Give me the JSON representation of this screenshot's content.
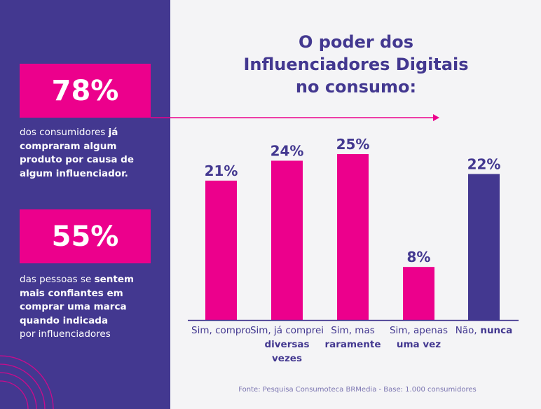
{
  "stats": [
    {
      "value": "78%",
      "text_plain": "dos consumidores ",
      "text_bold": "já compraram algum produto por causa de algum influenciador.",
      "text_after": ""
    },
    {
      "value": "55%",
      "text_plain": "das pessoas se ",
      "text_bold": "sentem mais confiantes em comprar uma marca quando indicada",
      "text_after": "por influenciadores"
    }
  ],
  "colors": {
    "purple": "#433890",
    "pink": "#ec008c",
    "background": "#f4f4f6"
  },
  "chart_data": {
    "type": "bar",
    "title": "O poder dos Influenciadores Digitais no consumo:",
    "categories": [
      {
        "plain": "Sim, compro",
        "bold": ""
      },
      {
        "plain": "Sim, já comprei",
        "bold": "diversas vezes"
      },
      {
        "plain": "Sim, mas",
        "bold": "raramente"
      },
      {
        "plain": "Sim, apenas",
        "bold": "uma vez"
      },
      {
        "plain": "Não,",
        "bold": "nunca"
      }
    ],
    "values": [
      21,
      24,
      25,
      8,
      22
    ],
    "value_labels": [
      "21%",
      "24%",
      "25%",
      "8%",
      "22%"
    ],
    "bar_colors": [
      "#ec008c",
      "#ec008c",
      "#ec008c",
      "#ec008c",
      "#433890"
    ],
    "ylim": [
      0,
      25
    ],
    "grid": false,
    "source": "Fonte: Pesquisa Consumoteca BRMedia - Base: 1.000 consumidores"
  }
}
